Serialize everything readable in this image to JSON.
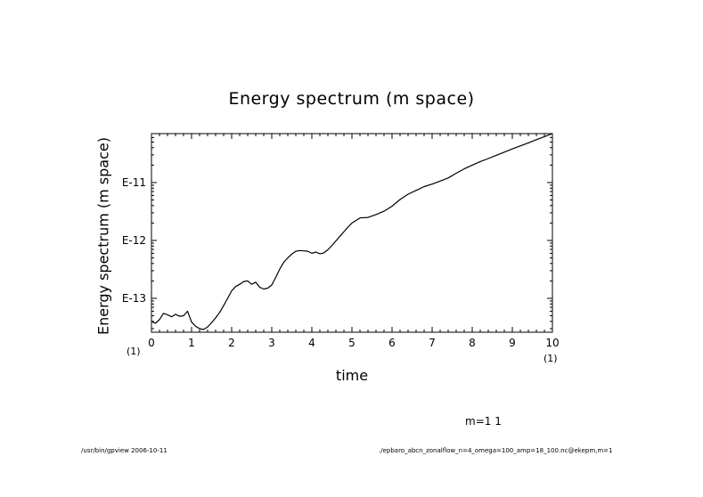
{
  "chart_data": {
    "type": "line",
    "title": "Energy spectrum (m space)",
    "xlabel": "time",
    "ylabel": "Energy spectrum (m space)",
    "x_multiplier_left": "(1)",
    "x_multiplier_right": "(1)",
    "xlim": [
      0,
      10
    ],
    "x_ticks": [
      0,
      1,
      2,
      3,
      4,
      5,
      6,
      7,
      8,
      9,
      10
    ],
    "x_tick_labels": [
      "0",
      "1",
      "2",
      "3",
      "4",
      "5",
      "6",
      "7",
      "8",
      "9",
      "10"
    ],
    "y_scale": "log",
    "ylim": [
      2.6e-14,
      7e-11
    ],
    "y_ticks": [
      1e-13,
      1e-12,
      1e-11
    ],
    "y_tick_labels": [
      "E-13",
      "E-12",
      "E-11"
    ],
    "grid": false,
    "annotation": "m=1 1",
    "series": [
      {
        "x": [
          0,
          0.1,
          0.2,
          0.3,
          0.4,
          0.5,
          0.6,
          0.7,
          0.8,
          0.9,
          1.0,
          1.1,
          1.2,
          1.3,
          1.4,
          1.5,
          1.6,
          1.7,
          1.8,
          1.9,
          2.0,
          2.1,
          2.2,
          2.3,
          2.4,
          2.5,
          2.6,
          2.7,
          2.8,
          2.9,
          3.0,
          3.1,
          3.2,
          3.3,
          3.4,
          3.5,
          3.6,
          3.7,
          3.8,
          3.9,
          4.0,
          4.1,
          4.2,
          4.3,
          4.4,
          4.5,
          4.6,
          4.7,
          4.8,
          4.9,
          5.0,
          5.2,
          5.4,
          5.6,
          5.8,
          6.0,
          6.2,
          6.4,
          6.6,
          6.8,
          7.0,
          7.2,
          7.4,
          7.6,
          7.8,
          8.0,
          8.2,
          8.4,
          8.6,
          8.8,
          9.0,
          9.2,
          9.4,
          9.6,
          9.8,
          10.0
        ],
        "y": [
          4e-14,
          3.7e-14,
          4.3e-14,
          5.5e-14,
          5.2e-14,
          4.8e-14,
          5.3e-14,
          4.9e-14,
          5e-14,
          6e-14,
          3.9e-14,
          3.3e-14,
          3e-14,
          2.9e-14,
          3.2e-14,
          3.8e-14,
          4.6e-14,
          5.7e-14,
          7.5e-14,
          1e-13,
          1.35e-13,
          1.6e-13,
          1.75e-13,
          1.95e-13,
          2e-13,
          1.75e-13,
          1.9e-13,
          1.55e-13,
          1.45e-13,
          1.5e-13,
          1.7e-13,
          2.3e-13,
          3.2e-13,
          4.2e-13,
          5e-13,
          5.8e-13,
          6.5e-13,
          6.7e-13,
          6.6e-13,
          6.5e-13,
          6e-13,
          6.3e-13,
          5.9e-13,
          6.1e-13,
          6.9e-13,
          8.2e-13,
          9.8e-13,
          1.18e-12,
          1.42e-12,
          1.7e-12,
          2e-12,
          2.45e-12,
          2.5e-12,
          2.8e-12,
          3.2e-12,
          3.9e-12,
          5.1e-12,
          6.3e-12,
          7.3e-12,
          8.5e-12,
          9.4e-12,
          1.06e-11,
          1.2e-11,
          1.45e-11,
          1.72e-11,
          2e-11,
          2.3e-11,
          2.6e-11,
          2.95e-11,
          3.35e-11,
          3.8e-11,
          4.3e-11,
          4.85e-11,
          5.5e-11,
          6.2e-11,
          7e-11
        ]
      }
    ]
  },
  "footer": {
    "left": "/usr/bin/gpview  2006-10-11",
    "right": "./epbaro_abcn_zonalflow_n=4_omega=100_amp=18_100.nc@ekepm,m=1"
  }
}
